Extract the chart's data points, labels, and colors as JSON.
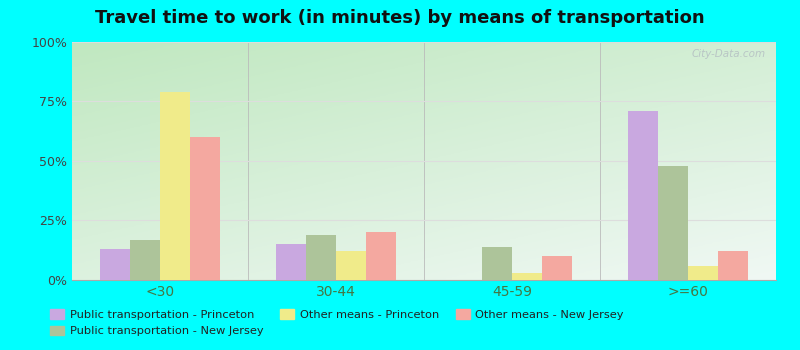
{
  "title": "Travel time to work (in minutes) by means of transportation",
  "categories": [
    "<30",
    "30-44",
    "45-59",
    ">=60"
  ],
  "series_order": [
    "Public transportation - Princeton",
    "Public transportation - New Jersey",
    "Other means - Princeton",
    "Other means - New Jersey"
  ],
  "series": {
    "Public transportation - Princeton": [
      13,
      15,
      0,
      71
    ],
    "Public transportation - New Jersey": [
      17,
      19,
      14,
      48
    ],
    "Other means - Princeton": [
      79,
      12,
      3,
      6
    ],
    "Other means - New Jersey": [
      60,
      20,
      10,
      12
    ]
  },
  "colors": {
    "Public transportation - Princeton": "#c9a8e0",
    "Public transportation - New Jersey": "#adc49a",
    "Other means - Princeton": "#f0eb8a",
    "Other means - New Jersey": "#f4a8a0"
  },
  "legend_order": [
    "Public transportation - Princeton",
    "Public transportation - New Jersey",
    "Other means - Princeton",
    "Other means - New Jersey"
  ],
  "bar_width": 0.17,
  "ylim": [
    0,
    100
  ],
  "yticks": [
    0,
    25,
    50,
    75,
    100
  ],
  "ytick_labels": [
    "0%",
    "25%",
    "50%",
    "75%",
    "100%"
  ],
  "bg_bottom_left": "#c8eec8",
  "bg_top_right": "#e8f4f0",
  "outer_background": "#00ffff",
  "grid_color": "#dddddd",
  "watermark": "City-Data.com",
  "title_fontsize": 13
}
